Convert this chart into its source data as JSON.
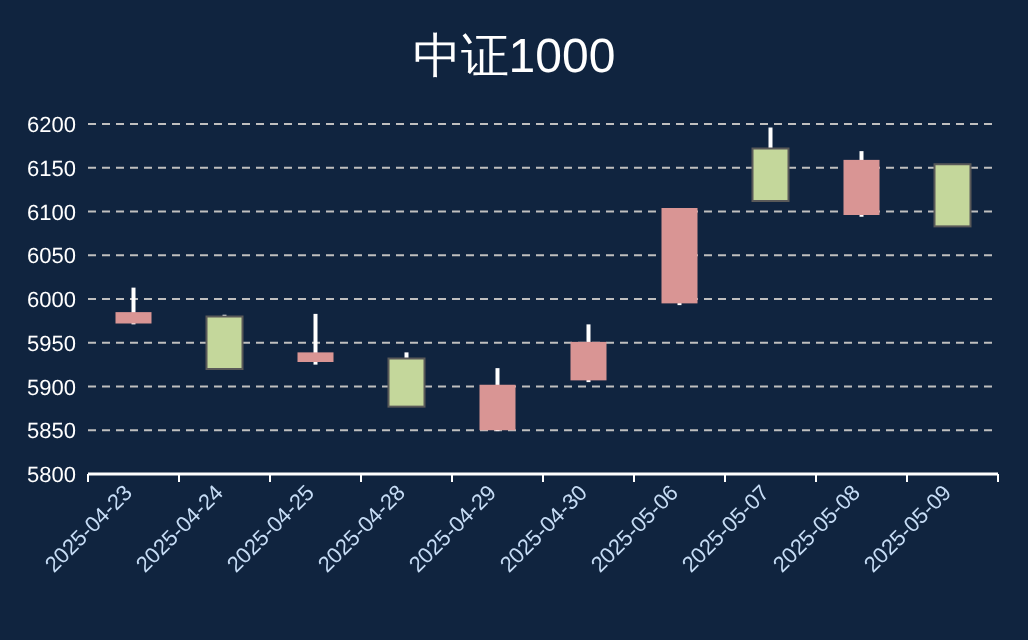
{
  "chart_data": {
    "type": "candlestick",
    "title": "中证1000",
    "categories": [
      "2025-04-23",
      "2025-04-24",
      "2025-04-25",
      "2025-04-28",
      "2025-04-29",
      "2025-04-30",
      "2025-05-06",
      "2025-05-07",
      "2025-05-08",
      "2025-05-09"
    ],
    "ohlc": [
      [
        5972,
        6013,
        5971,
        5985
      ],
      [
        5980,
        5982,
        5920,
        5920
      ],
      [
        5928,
        5983,
        5925,
        5939
      ],
      [
        5932,
        5939,
        5877,
        5877
      ],
      [
        5850,
        5921,
        5849,
        5902
      ],
      [
        5907,
        5971,
        5905,
        5951
      ],
      [
        5995,
        6104,
        5993,
        6104
      ],
      [
        6172,
        6196,
        6112,
        6112
      ],
      [
        6096,
        6169,
        6094,
        6159
      ],
      [
        6154,
        6154,
        6083,
        6083
      ]
    ],
    "colors": [
      "#d99594",
      "#c4d79b",
      "#d99594",
      "#c4d79b",
      "#d99594",
      "#d99594",
      "#d99594",
      "#c4d79b",
      "#d99594",
      "#c4d79b"
    ],
    "ylim": [
      5800,
      6200
    ],
    "yticks": [
      5800,
      5850,
      5900,
      5950,
      6000,
      6050,
      6100,
      6150,
      6200
    ],
    "grid": "y"
  }
}
